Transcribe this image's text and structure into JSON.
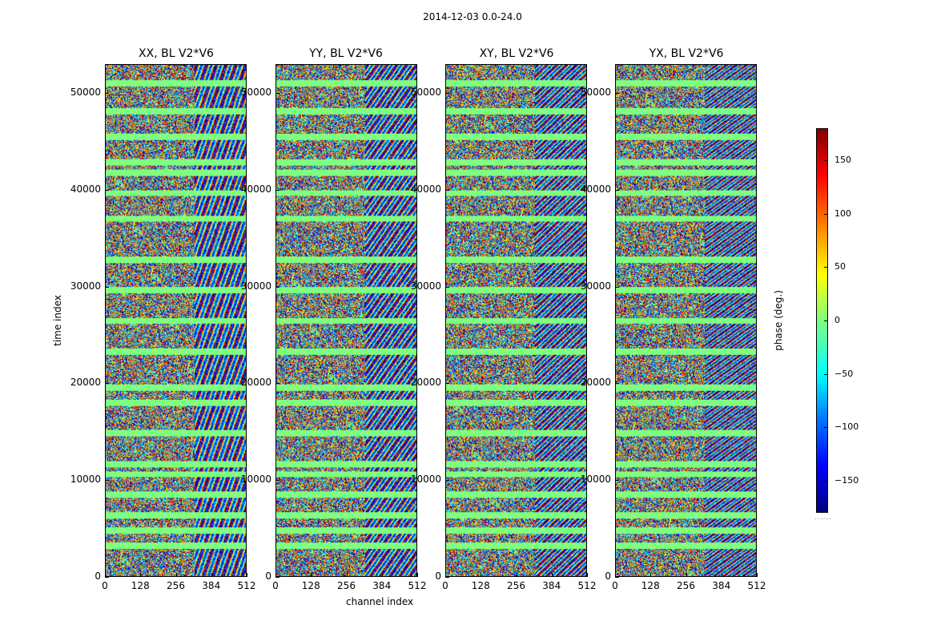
{
  "suptitle": "2014-12-03 0.0-24.0",
  "panels": [
    {
      "title": "XX, BL V2*V6",
      "key": "xx"
    },
    {
      "title": "YY, BL V2*V6",
      "key": "yy"
    },
    {
      "title": "XY, BL V2*V6",
      "key": "xy"
    },
    {
      "title": "YX, BL V2*V6",
      "key": "yx"
    }
  ],
  "colorbar": {
    "label": "phase (deg.)",
    "ticks": [
      "150",
      "100",
      "50",
      "0",
      "−50",
      "−100",
      "−150"
    ],
    "range": [
      -180,
      180
    ],
    "colormap": "jet",
    "footer": "......"
  },
  "chart_data": {
    "type": "heatmap",
    "title": "2014-12-03 0.0-24.0",
    "xlabel": "channel index",
    "ylabel": "time index",
    "xlim": [
      0,
      512
    ],
    "ylim": [
      0,
      53000
    ],
    "xticks": [
      "0",
      "128",
      "256",
      "384",
      "512"
    ],
    "yticks": [
      "0",
      "10000",
      "20000",
      "30000",
      "40000",
      "50000"
    ],
    "zlabel": "phase (deg.)",
    "zlim": [
      -180,
      180
    ],
    "series": [
      {
        "name": "XX, BL V2*V6"
      },
      {
        "name": "YY, BL V2*V6"
      },
      {
        "name": "XY, BL V2*V6"
      },
      {
        "name": "YX, BL V2*V6"
      }
    ]
  }
}
